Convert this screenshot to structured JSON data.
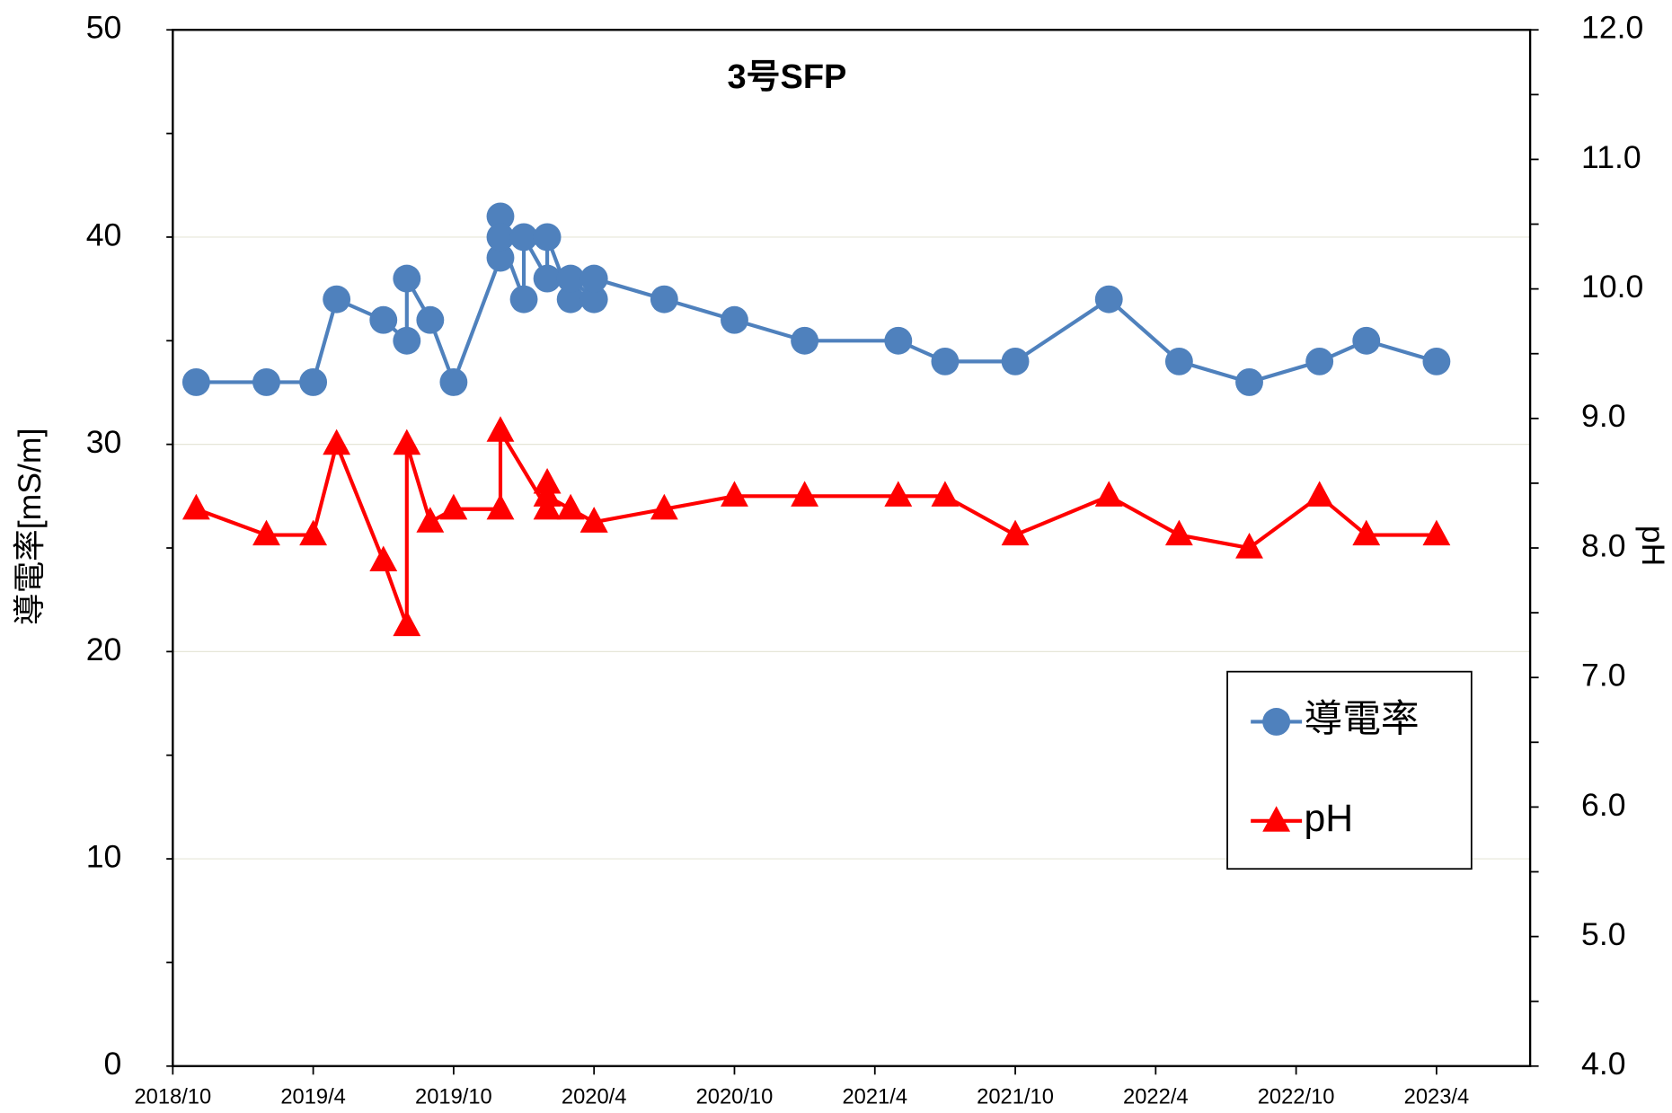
{
  "chart_data": {
    "type": "line",
    "title": "3号SFP",
    "y_label": "導電率[mS/m]",
    "y2_label": "pH",
    "xlim": [
      "2018/10",
      "2023/8"
    ],
    "xticks": [
      "2018/10",
      "2019/4",
      "2019/10",
      "2020/4",
      "2020/10",
      "2021/4",
      "2021/10",
      "2022/4",
      "2022/10",
      "2023/4"
    ],
    "ylim": [
      0,
      50
    ],
    "yticks": [
      0,
      10,
      20,
      30,
      40,
      50
    ],
    "y2lim": [
      4,
      12
    ],
    "y2ticks": [
      {
        "value": 4,
        "label": "4.0"
      },
      {
        "value": 5,
        "label": "5.0"
      },
      {
        "value": 6,
        "label": "6.0"
      },
      {
        "value": 7,
        "label": "7.0"
      },
      {
        "value": 8,
        "label": "8.0"
      },
      {
        "value": 9,
        "label": "9.0"
      },
      {
        "value": 10,
        "label": "10.0"
      },
      {
        "value": 11,
        "label": "11.0"
      },
      {
        "value": 12,
        "label": "12.0"
      }
    ],
    "grid": true,
    "legend": "lower right",
    "series": [
      {
        "name": "導電率",
        "color": "#4f81bd",
        "marker": "circle",
        "x": [
          "2018/11",
          "2019/2",
          "2019/4",
          "2019/5",
          "2019/7",
          "2019/8",
          "2019/8",
          "2019/9",
          "2019/10",
          "2019/12",
          "2019/12",
          "2019/12",
          "2020/1",
          "2020/1",
          "2020/2",
          "2020/2",
          "2020/3",
          "2020/3",
          "2020/4",
          "2020/4",
          "2020/7",
          "2020/10",
          "2021/1",
          "2021/5",
          "2021/7",
          "2021/10",
          "2022/2",
          "2022/5",
          "2022/8",
          "2022/11",
          "2023/1",
          "2023/4"
        ],
        "values": [
          33,
          33,
          33,
          37,
          36,
          35,
          38,
          36,
          33,
          39,
          41,
          40,
          37,
          40,
          38,
          40,
          37,
          38,
          37,
          38,
          37,
          36,
          35,
          35,
          34,
          34,
          37,
          34,
          33,
          34,
          35,
          34
        ]
      },
      {
        "name": "pH",
        "color": "#ff0000",
        "marker": "triangle",
        "axis": "y2",
        "x": [
          "2018/11",
          "2019/2",
          "2019/4",
          "2019/5",
          "2019/7",
          "2019/8",
          "2019/8",
          "2019/9",
          "2019/10",
          "2019/12",
          "2019/12",
          "2020/2",
          "2020/2",
          "2020/2",
          "2020/3",
          "2020/4",
          "2020/4",
          "2020/7",
          "2020/10",
          "2021/1",
          "2021/5",
          "2021/7",
          "2021/10",
          "2022/2",
          "2022/5",
          "2022/8",
          "2022/11",
          "2023/1",
          "2023/4"
        ],
        "values": [
          8.3,
          8.1,
          8.1,
          8.8,
          7.9,
          7.4,
          8.8,
          8.2,
          8.3,
          8.3,
          8.9,
          8.3,
          8.5,
          8.4,
          8.3,
          8.2,
          8.2,
          8.3,
          8.4,
          8.4,
          8.4,
          8.4,
          8.1,
          8.4,
          8.1,
          8.0,
          8.4,
          8.1,
          8.1
        ]
      }
    ]
  }
}
